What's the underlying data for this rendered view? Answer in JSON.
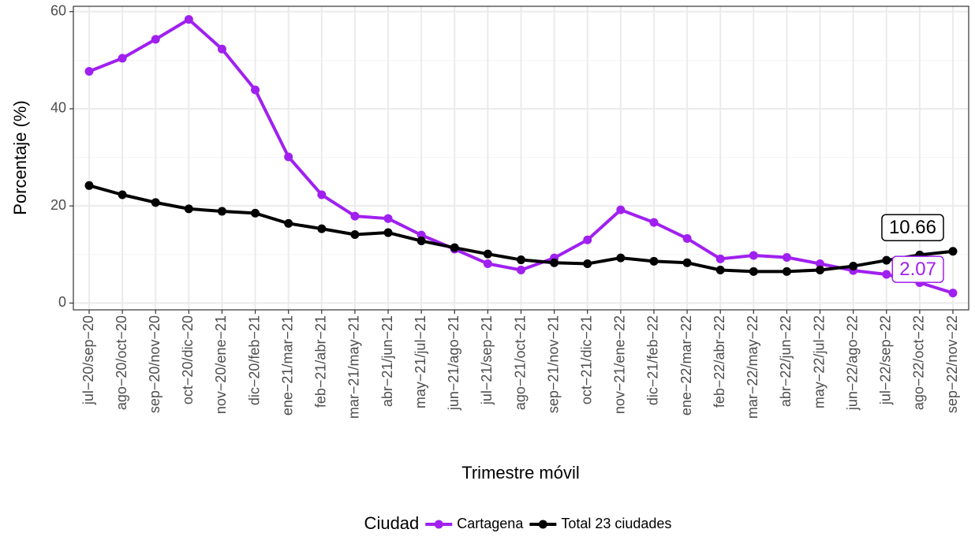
{
  "chart_data": {
    "type": "line",
    "x_label": "Trimestre móvil",
    "y_label": "Porcentaje (%)",
    "categories": [
      "jul−20/sep−20",
      "ago−20/oct−20",
      "sep−20/nov−20",
      "oct−20/dic−20",
      "nov−20/ene−21",
      "dic−20/feb−21",
      "ene−21/mar−21",
      "feb−21/abr−21",
      "mar−21/may−21",
      "abr−21/jun−21",
      "may−21/jul−21",
      "jun−21/ago−21",
      "jul−21/sep−21",
      "ago−21/oct−21",
      "sep−21/nov−21",
      "oct−21/dic−21",
      "nov−21/ene−22",
      "dic−21/feb−22",
      "ene−22/mar−22",
      "feb−22/abr−22",
      "mar−22/may−22",
      "abr−22/jun−22",
      "may−22/jul−22",
      "jun−22/ago−22",
      "jul−22/sep−22",
      "ago−22/oct−22",
      "sep−22/nov−22"
    ],
    "series": [
      {
        "name": "Cartagena",
        "color": "#a020f0",
        "values": [
          47.7,
          50.4,
          54.3,
          58.4,
          52.3,
          43.9,
          30.1,
          22.3,
          17.9,
          17.4,
          14.0,
          11.1,
          8.1,
          6.8,
          9.3,
          13.0,
          19.2,
          16.6,
          13.3,
          9.1,
          9.8,
          9.4,
          8.1,
          6.7,
          5.9,
          4.2,
          2.07
        ],
        "value_labels": [
          null,
          null,
          null,
          null,
          null,
          null,
          null,
          null,
          null,
          null,
          null,
          null,
          null,
          null,
          null,
          null,
          null,
          null,
          null,
          null,
          null,
          null,
          null,
          null,
          null,
          null,
          "2.07"
        ]
      },
      {
        "name": "Total 23 ciudades",
        "color": "#000000",
        "values": [
          24.2,
          22.3,
          20.7,
          19.4,
          18.9,
          18.5,
          16.4,
          15.3,
          14.1,
          14.5,
          12.8,
          11.4,
          10.1,
          8.9,
          8.3,
          8.1,
          9.3,
          8.6,
          8.3,
          6.8,
          6.5,
          6.5,
          6.8,
          7.6,
          8.8,
          9.9,
          10.66
        ],
        "value_labels": [
          null,
          null,
          null,
          null,
          null,
          null,
          null,
          null,
          null,
          null,
          null,
          null,
          null,
          null,
          null,
          null,
          null,
          null,
          null,
          null,
          null,
          null,
          null,
          null,
          null,
          null,
          "10.66"
        ]
      }
    ],
    "legend_title": "Ciudad",
    "legend_position": "bottom",
    "ylim": [
      -1.4,
      61.1
    ],
    "yticks": [
      0,
      20,
      40,
      60
    ],
    "minor_yticks": [
      10,
      30,
      50
    ],
    "grid": true
  }
}
